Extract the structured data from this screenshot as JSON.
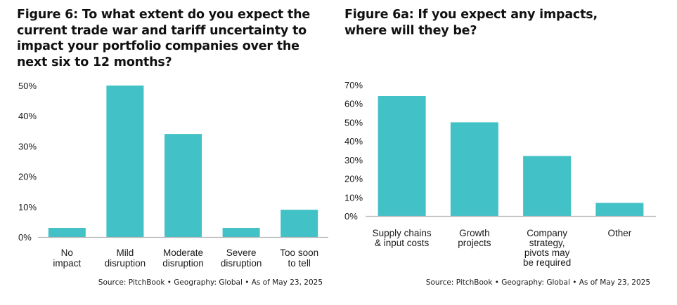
{
  "colors": {
    "bar": "#42c1c6",
    "axis": "#b3b3b3",
    "text": "#1a1a1a"
  },
  "chart_data": [
    {
      "id": "figure-6",
      "type": "bar",
      "title": "Figure 6: To what extent do you expect the current trade war and tariff uncertainty to impact your portfolio companies over the next six to 12 months?",
      "categories": [
        [
          "No",
          "impact"
        ],
        [
          "Mild",
          "disruption"
        ],
        [
          "Moderate",
          "disruption"
        ],
        [
          "Severe",
          "disruption"
        ],
        [
          "Too soon",
          "to tell"
        ]
      ],
      "values": [
        3,
        50,
        34,
        3,
        9
      ],
      "unit": "%",
      "ylim": [
        0,
        50
      ],
      "yticks": [
        0,
        10,
        20,
        30,
        40,
        50
      ],
      "ytick_labels": [
        "0%",
        "10%",
        "20%",
        "30%",
        "40%",
        "50%"
      ],
      "xlabel": "",
      "ylabel": "",
      "grid": false,
      "source": "Source: PitchBook  •  Geography: Global  •  As of May 23, 2025"
    },
    {
      "id": "figure-6a",
      "type": "bar",
      "title": "Figure 6a: If you expect any impacts, where will they be?",
      "categories": [
        [
          "Supply chains",
          "& input costs"
        ],
        [
          "Growth",
          "projects"
        ],
        [
          "Company",
          "strategy,",
          "pivots may",
          "be required"
        ],
        [
          "Other"
        ]
      ],
      "values": [
        64,
        50,
        32,
        7
      ],
      "unit": "%",
      "ylim": [
        0,
        70
      ],
      "yticks": [
        0,
        10,
        20,
        30,
        40,
        50,
        60,
        70
      ],
      "ytick_labels": [
        "0%",
        "10%",
        "20%",
        "30%",
        "40%",
        "50%",
        "60%",
        "70%"
      ],
      "xlabel": "",
      "ylabel": "",
      "grid": false,
      "source": "Source: PitchBook  •  Geography: Global  •  As of May 23, 2025"
    }
  ]
}
